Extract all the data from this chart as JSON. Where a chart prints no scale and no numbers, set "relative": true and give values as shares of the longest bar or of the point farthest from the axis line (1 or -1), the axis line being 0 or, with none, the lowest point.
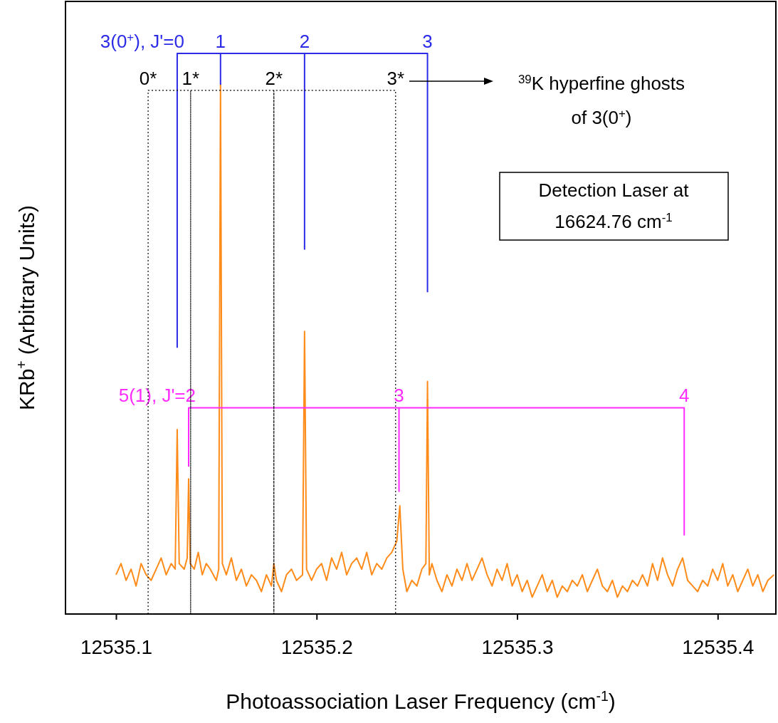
{
  "chart_data": {
    "type": "line",
    "relative": true,
    "xlabel": "Photoassociation Laser Frequency (cm$^{-1}$)",
    "ylabel": "KRb$^{+}$ (Arbitrary Units)",
    "xlim": [
      12535.0748,
      12535.429
    ],
    "xticks": [
      12535.1,
      12535.2,
      12535.3,
      12535.4
    ],
    "grid": false,
    "marker": "none",
    "series": [
      {
        "color": "#ff8c1a",
        "line_style": "solid",
        "x": [
          12535.1,
          12535.1025,
          12535.105,
          12535.1075,
          12535.11,
          12535.1125,
          12535.115,
          12535.1175,
          12535.12,
          12535.1225,
          12535.125,
          12535.1275,
          12535.1295,
          12535.1305,
          12535.1315,
          12535.134,
          12535.1355,
          12535.1362,
          12535.137,
          12535.139,
          12535.141,
          12535.143,
          12535.145,
          12535.147,
          12535.15,
          12535.1512,
          12535.1521,
          12535.153,
          12535.155,
          12535.1575,
          12535.16,
          12535.1625,
          12535.165,
          12535.1675,
          12535.17,
          12535.1725,
          12535.175,
          12535.1775,
          12535.1787,
          12535.18,
          12535.1825,
          12535.185,
          12535.1875,
          12535.19,
          12535.193,
          12535.194,
          12535.195,
          12535.1975,
          12535.2,
          12535.2025,
          12535.205,
          12535.2075,
          12535.21,
          12535.2125,
          12535.215,
          12535.2175,
          12535.22,
          12535.2225,
          12535.225,
          12535.2275,
          12535.23,
          12535.2325,
          12535.235,
          12535.2375,
          12535.24,
          12535.2415,
          12535.243,
          12535.245,
          12535.2475,
          12535.25,
          12535.2525,
          12535.2545,
          12535.2553,
          12535.2562,
          12535.2575,
          12535.26,
          12535.2625,
          12535.265,
          12535.2675,
          12535.27,
          12535.2725,
          12535.275,
          12535.2775,
          12535.28,
          12535.2825,
          12535.285,
          12535.2875,
          12535.29,
          12535.2925,
          12535.295,
          12535.2975,
          12535.3,
          12535.3025,
          12535.305,
          12535.3075,
          12535.31,
          12535.3125,
          12535.315,
          12535.3175,
          12535.32,
          12535.3225,
          12535.325,
          12535.3275,
          12535.33,
          12535.3325,
          12535.335,
          12535.3375,
          12535.34,
          12535.3425,
          12535.345,
          12535.3475,
          12535.35,
          12535.3525,
          12535.355,
          12535.3575,
          12535.36,
          12535.3625,
          12535.365,
          12535.3675,
          12535.37,
          12535.3725,
          12535.375,
          12535.3775,
          12535.38,
          12535.3825,
          12535.385,
          12535.3875,
          12535.39,
          12535.3925,
          12535.395,
          12535.3975,
          12535.4,
          12535.4025,
          12535.405,
          12535.4075,
          12535.41,
          12535.4125,
          12535.415,
          12535.4175,
          12535.42,
          12535.4225,
          12535.425,
          12535.428
        ],
        "values": [
          0.07,
          0.09,
          0.06,
          0.08,
          0.05,
          0.09,
          0.07,
          0.06,
          0.08,
          0.1,
          0.07,
          0.09,
          0.08,
          0.329,
          0.09,
          0.08,
          0.1,
          0.241,
          0.09,
          0.08,
          0.11,
          0.07,
          0.09,
          0.08,
          0.06,
          0.08,
          0.945,
          0.09,
          0.07,
          0.1,
          0.06,
          0.08,
          0.05,
          0.07,
          0.06,
          0.04,
          0.07,
          0.05,
          0.09,
          0.06,
          0.04,
          0.07,
          0.08,
          0.06,
          0.07,
          0.504,
          0.08,
          0.06,
          0.08,
          0.09,
          0.06,
          0.1,
          0.08,
          0.11,
          0.07,
          0.09,
          0.1,
          0.08,
          0.11,
          0.07,
          0.09,
          0.08,
          0.1,
          0.11,
          0.13,
          0.193,
          0.08,
          0.04,
          0.06,
          0.05,
          0.08,
          0.09,
          0.415,
          0.07,
          0.09,
          0.06,
          0.04,
          0.07,
          0.05,
          0.08,
          0.06,
          0.09,
          0.06,
          0.08,
          0.1,
          0.07,
          0.05,
          0.08,
          0.06,
          0.09,
          0.05,
          0.07,
          0.04,
          0.06,
          0.03,
          0.05,
          0.07,
          0.04,
          0.06,
          0.03,
          0.05,
          0.04,
          0.06,
          0.05,
          0.07,
          0.04,
          0.06,
          0.08,
          0.05,
          0.04,
          0.06,
          0.03,
          0.05,
          0.04,
          0.06,
          0.05,
          0.07,
          0.05,
          0.09,
          0.06,
          0.1,
          0.07,
          0.05,
          0.08,
          0.1,
          0.06,
          0.05,
          0.04,
          0.06,
          0.05,
          0.08,
          0.06,
          0.09,
          0.05,
          0.07,
          0.04,
          0.06,
          0.08,
          0.05,
          0.07,
          0.04,
          0.06,
          0.07
        ]
      },
      {
        "name": "3(0$^{+}$), J'=0",
        "color": "#2b2be8",
        "line_style": "solid",
        "x": [
          12535.1305,
          12535.1305,
          12535.1521,
          12535.1521,
          12535.1521,
          12535.194,
          12535.194,
          12535.194,
          12535.2553,
          12535.2553
        ],
        "values": [
          0.475,
          1,
          1,
          0.945,
          1,
          1,
          0.651,
          1,
          1,
          0.574
        ]
      },
      {
        "name": "5(1), J'=2",
        "color": "#ff2bff",
        "line_style": "solid",
        "x": [
          12535.1362,
          12535.1362,
          12535.2411,
          12535.2411,
          12535.2411,
          12535.3833,
          12535.3833
        ],
        "values": [
          0.263,
          0.368,
          0.368,
          0.219,
          0.368,
          0.368,
          0.14
        ]
      },
      {
        "color": "#000000",
        "line_style": "dotted",
        "x": [
          12535.116,
          12535.116,
          12535.1372,
          12535.1372,
          12535.1372,
          12535.1787,
          12535.1787,
          12535.1787,
          12535.2394,
          12535.2394
        ],
        "values": [
          0,
          0.934,
          0.934,
          0,
          0.934,
          0.934,
          0,
          0.934,
          0.934,
          0
        ]
      }
    ],
    "annotations": [
      {
        "text": "1",
        "x": 12535.1521,
        "y": 1
      },
      {
        "text": "2",
        "x": 12535.194,
        "y": 1
      },
      {
        "text": "3",
        "x": 12535.2553,
        "y": 1
      },
      {
        "text": "0*",
        "x": 12535.116,
        "y": 0.934
      },
      {
        "text": "1*",
        "x": 12535.1372,
        "y": 0.934
      },
      {
        "text": "2*",
        "x": 12535.1787,
        "y": 0.934
      },
      {
        "text": "3*",
        "x": 12535.2394,
        "y": 0.934
      },
      {
        "text": "3",
        "x": 12535.2411,
        "y": 0.368
      },
      {
        "text": "4",
        "x": 12535.3833,
        "y": 0.368
      },
      "$^{39}$K hyperfine ghosts of 3(0$^{+}$)",
      "Detection Laser at 16624.76 cm$^{-1}$"
    ]
  }
}
